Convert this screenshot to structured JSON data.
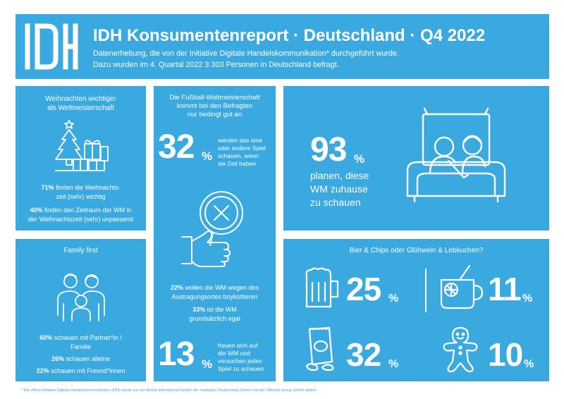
{
  "colors": {
    "accent": "#3aa9e0",
    "background": "#ffffff",
    "text": "#ffffff"
  },
  "header": {
    "logo_text": "IDH",
    "title": "IDH Konsumentenreport · Deutschland · Q4 2022",
    "line1": "Datenerhebung, die von der Initiative Digitale Handelskommunikation* durchgeführt wurde.",
    "line2": "Dazu wurden im 4. Quartal 2022 3.303 Personen in Deutschland befragt."
  },
  "weihnachten": {
    "title_line1": "Weihnachten wichtiger",
    "title_line2": "als Weltmeisterschaft",
    "icon": "christmas-tree-icon",
    "stat1_bold": "71%",
    "stat1_line1": " finden die Weihnachts-",
    "stat1_line2": "zeit (sehr) wichtig",
    "stat2_bold": "40%",
    "stat2_line1": " finden den Zeitraum der WM in",
    "stat2_line2": "der Weihnachtszeit (sehr) unpassend"
  },
  "family": {
    "title": "Family first",
    "icon": "family-icon",
    "stat1_bold": "60%",
    "stat1_line1": " schauen mit Partner*in /",
    "stat1_line2": "Familie",
    "stat2_bold": "26%",
    "stat2_text": " schauen alleine",
    "stat3_bold": "22%",
    "stat3_text": " schauen mit Freund*innen"
  },
  "fussball": {
    "title_line1": "Die Fußball-Weltmeisterschaft",
    "title_line2": "kommt bei den Befragten",
    "title_line3": "nur bedingt gut an",
    "big1_num": "32",
    "big1_pct": "%",
    "big1_line1": "werden das eine",
    "big1_line2": "oder andere Spiel",
    "big1_line3": "schauen, wenn",
    "big1_line4": "sie Zeit haben",
    "icon": "magnifier-x-icon",
    "stat1_bold": "22%",
    "stat1_line1": " wollen die WM wegen des",
    "stat1_line2": "Austragungsortes boykottieren",
    "stat2_bold": "33%",
    "stat2_line1": " ist die WM",
    "stat2_line2": "grundsätzlich egal",
    "big2_num": "13",
    "big2_pct": "%",
    "big2_line1": "freuen sich auf",
    "big2_line2": "die WM und",
    "big2_line3": "versuchen jedes",
    "big2_line4": "Spiel zu schauen"
  },
  "zuhause": {
    "big_num": "93",
    "big_pct": "%",
    "line1": "planen, diese",
    "line2": "WM zuhause",
    "line3": "zu schauen",
    "icon": "couch-tv-icon"
  },
  "snacks": {
    "title": "Bier & Chips oder Glühwein & Lebkuchen?",
    "items": [
      {
        "icon": "beer-icon",
        "num": "25",
        "pct": "%"
      },
      {
        "icon": "mulled-wine-icon",
        "num": "11",
        "pct": "%"
      },
      {
        "icon": "chips-icon",
        "num": "32",
        "pct": "%"
      },
      {
        "icon": "gingerbread-icon",
        "num": "10",
        "pct": "%"
      }
    ]
  },
  "footnote": "* Die offene Initiative Digitale Handelskommunikation (IDH) wurde von der Bonial International GmbH, der marktguru Deutschland GmbH und der Offerista Group GmbH initiiert."
}
